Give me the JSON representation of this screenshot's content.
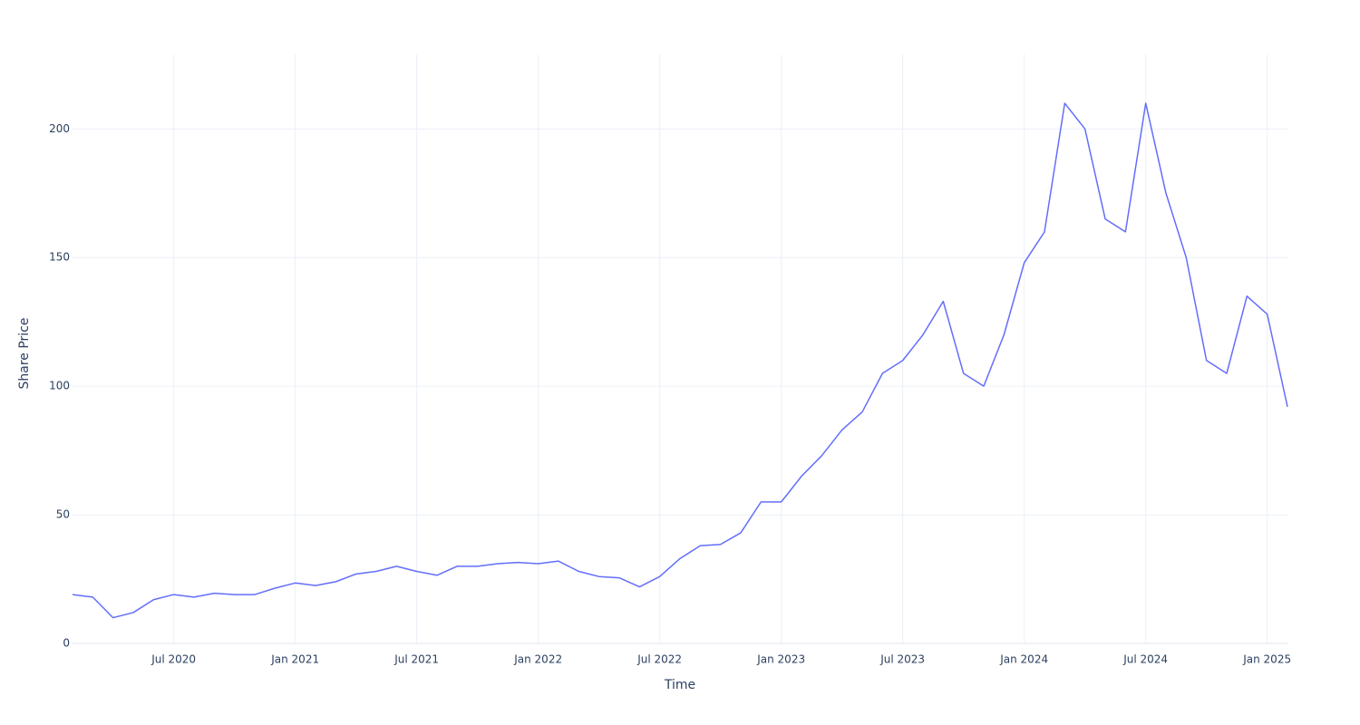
{
  "chart_data": {
    "type": "line",
    "x_label": "Time",
    "y_label": "Share Price",
    "x": [
      "2020-02",
      "2020-03",
      "2020-04",
      "2020-05",
      "2020-06",
      "2020-07",
      "2020-08",
      "2020-09",
      "2020-10",
      "2020-11",
      "2020-12",
      "2021-01",
      "2021-02",
      "2021-03",
      "2021-04",
      "2021-05",
      "2021-06",
      "2021-07",
      "2021-08",
      "2021-09",
      "2021-10",
      "2021-11",
      "2021-12",
      "2022-01",
      "2022-02",
      "2022-03",
      "2022-04",
      "2022-05",
      "2022-06",
      "2022-07",
      "2022-08",
      "2022-09",
      "2022-10",
      "2022-11",
      "2022-12",
      "2023-01",
      "2023-02",
      "2023-03",
      "2023-04",
      "2023-05",
      "2023-06",
      "2023-07",
      "2023-08",
      "2023-09",
      "2023-10",
      "2023-11",
      "2023-12",
      "2024-01",
      "2024-02",
      "2024-03",
      "2024-04",
      "2024-05",
      "2024-06",
      "2024-07",
      "2024-08",
      "2024-09",
      "2024-10",
      "2024-11",
      "2024-12",
      "2025-01",
      "2025-02"
    ],
    "series": [
      {
        "name": "Share Price",
        "color": "#636efa",
        "values": [
          19,
          18,
          10,
          12,
          17,
          19,
          18,
          19.5,
          19,
          19,
          21.5,
          23.5,
          22.5,
          24,
          27,
          28,
          30,
          28,
          26.5,
          30,
          30,
          31,
          31.5,
          31,
          32,
          28,
          26,
          25.5,
          22,
          26,
          33,
          38,
          38.5,
          43,
          55,
          55,
          65,
          73,
          83,
          90,
          105,
          110,
          120,
          133,
          105,
          100,
          120,
          148,
          160,
          210,
          200,
          165,
          160,
          210,
          175,
          150,
          110,
          105,
          135,
          128,
          92
        ]
      }
    ],
    "xlim": [
      "2020-02",
      "2025-02"
    ],
    "xticks": [
      {
        "value": "2020-07",
        "label": "Jul 2020"
      },
      {
        "value": "2021-01",
        "label": "Jan 2021"
      },
      {
        "value": "2021-07",
        "label": "Jul 2021"
      },
      {
        "value": "2022-01",
        "label": "Jan 2022"
      },
      {
        "value": "2022-07",
        "label": "Jul 2022"
      },
      {
        "value": "2023-01",
        "label": "Jan 2023"
      },
      {
        "value": "2023-07",
        "label": "Jul 2023"
      },
      {
        "value": "2024-01",
        "label": "Jan 2024"
      },
      {
        "value": "2024-07",
        "label": "Jul 2024"
      },
      {
        "value": "2025-01",
        "label": "Jan 2025"
      }
    ],
    "ylim": [
      0,
      229
    ],
    "yticks": [
      0,
      50,
      100,
      150,
      200
    ],
    "grid": true
  }
}
